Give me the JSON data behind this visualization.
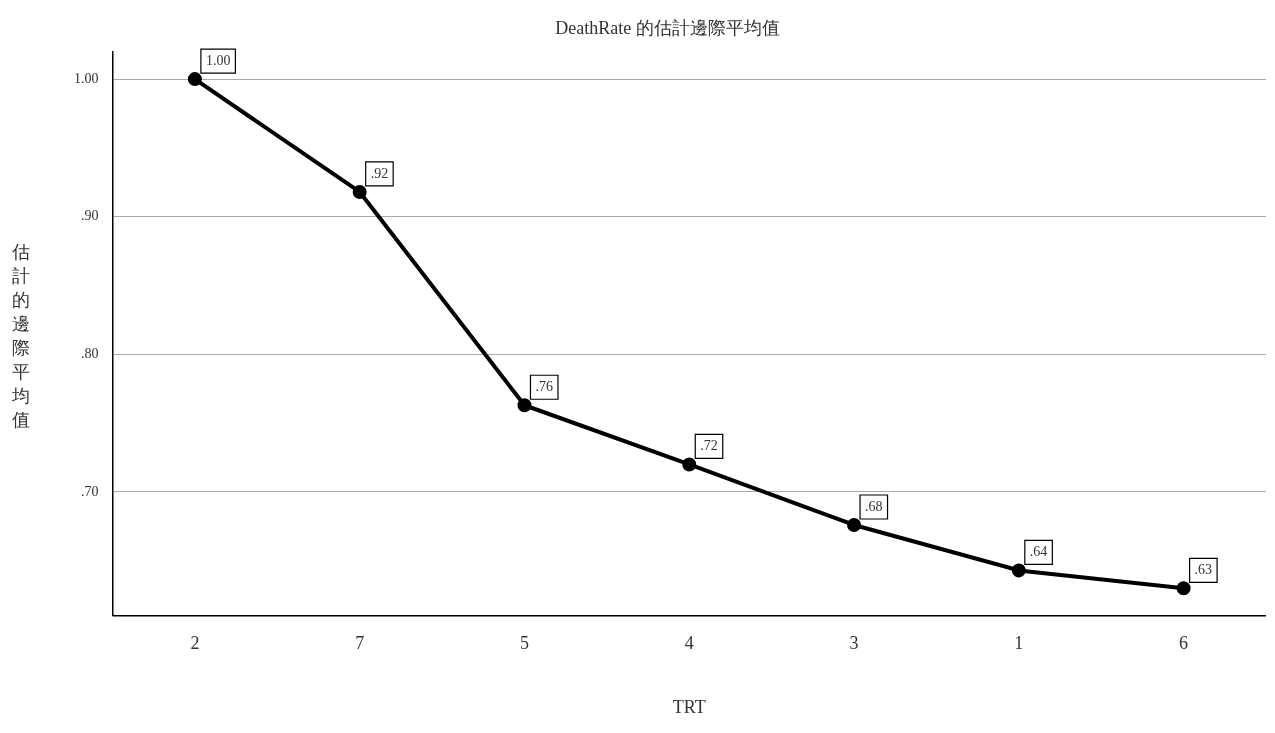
{
  "chart_data": {
    "type": "line",
    "title": "DeathRate 的估計邊際平均值",
    "xlabel": "TRT",
    "ylabel": "估計的邊際平均值",
    "categories": [
      "2",
      "7",
      "5",
      "4",
      "3",
      "1",
      "6"
    ],
    "series": [
      {
        "color": "#000000",
        "values": [
          1.0,
          0.918,
          0.763,
          0.72,
          0.676,
          0.643,
          0.63
        ],
        "value_labels": [
          "1.00",
          ".92",
          ".76",
          ".72",
          ".68",
          ".64",
          ".63"
        ]
      }
    ],
    "ylim": [
      0.61,
      1.02
    ],
    "yticks": [
      {
        "value": 0.7,
        "label": ".70"
      },
      {
        "value": 0.8,
        "label": ".80"
      },
      {
        "value": 0.9,
        "label": ".90"
      },
      {
        "value": 1.0,
        "label": "1.00"
      }
    ],
    "grid": "y",
    "legend": false,
    "marker": "circle",
    "line_style": "solid"
  }
}
